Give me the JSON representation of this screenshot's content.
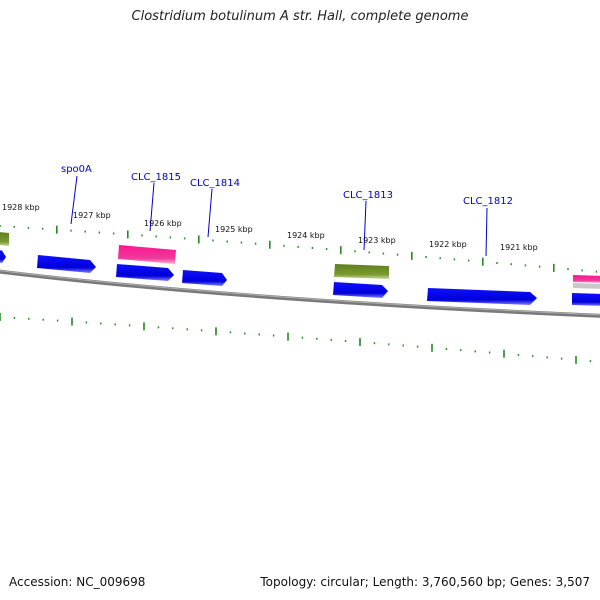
{
  "title": "Clostridium botulinum A str. Hall, complete genome",
  "footer": {
    "accession": "Accession: NC_009698",
    "summary": "Topology: circular; Length: 3,760,560 bp; Genes: 3,507"
  },
  "kbp_labels": [
    "1928 kbp",
    "1927 kbp",
    "1926 kbp",
    "1925 kbp",
    "1924 kbp",
    "1923 kbp",
    "1922 kbp",
    "1921 kbp"
  ],
  "gene_labels": [
    "spo0A",
    "CLC_1815",
    "CLC_1814",
    "CLC_1813",
    "CLC_1812"
  ],
  "colors": {
    "cds": "#0000ee",
    "rRNA": "#ee1188",
    "tRNA": "#6b8e23",
    "backbone": "#808080",
    "tick": "#228b22",
    "label": "#0000cc"
  }
}
